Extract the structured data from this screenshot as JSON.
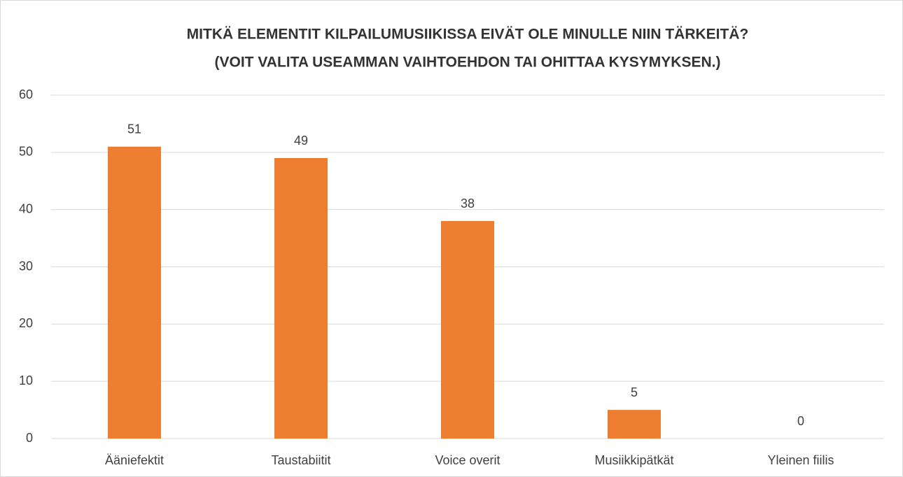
{
  "chart_data": {
    "type": "bar",
    "title": [
      "MITKÄ ELEMENTIT KILPAILUMUSIIKISSA EIVÄT OLE MINULLE NIIN TÄRKEITÄ?",
      "(VOIT VALITA USEAMMAN VAIHTOEHDON TAI OHITTAA KYSYMYKSEN.)"
    ],
    "categories": [
      "Ääniefektit",
      "Taustabiitit",
      "Voice overit",
      "Musiikkipätkät",
      "Yleinen fiilis"
    ],
    "values": [
      51,
      49,
      38,
      5,
      0
    ],
    "color": "#ed7d31",
    "ylim": [
      0,
      60
    ],
    "yticks": [
      0,
      10,
      20,
      30,
      40,
      50,
      60
    ],
    "grid": true,
    "data_labels": true
  }
}
